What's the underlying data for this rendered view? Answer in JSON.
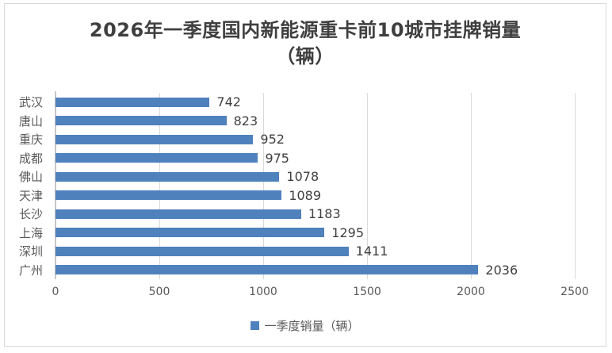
{
  "title": {
    "line1": "2026年一季度国内新能源重卡前10城市挂牌销量",
    "line2": "（辆）"
  },
  "legend": {
    "label": "一季度销量（辆）"
  },
  "colors": {
    "bar": "#4F81BD",
    "gridline": "#D9D9D9",
    "axis_line": "#C6C6C6",
    "title_text": "#3F3F3F",
    "label_text": "#595959",
    "value_text": "#404040",
    "frame_border": "#D9D9D9"
  },
  "chart_data": {
    "type": "bar",
    "orientation": "horizontal",
    "title": "2026年一季度国内新能源重卡前10城市挂牌销量（辆）",
    "categories": [
      "武汉",
      "唐山",
      "重庆",
      "成都",
      "佛山",
      "天津",
      "长沙",
      "上海",
      "深圳",
      "广州"
    ],
    "values": [
      742,
      823,
      952,
      975,
      1078,
      1089,
      1183,
      1295,
      1411,
      2036
    ],
    "series_name": "一季度销量（辆）",
    "xlabel": "",
    "ylabel": "",
    "xlim": [
      0,
      2500
    ],
    "x_ticks": [
      0,
      500,
      1000,
      1500,
      2000,
      2500
    ],
    "grid": true,
    "legend_position": "bottom",
    "bar_color": "#4F81BD",
    "data_labels": true
  }
}
